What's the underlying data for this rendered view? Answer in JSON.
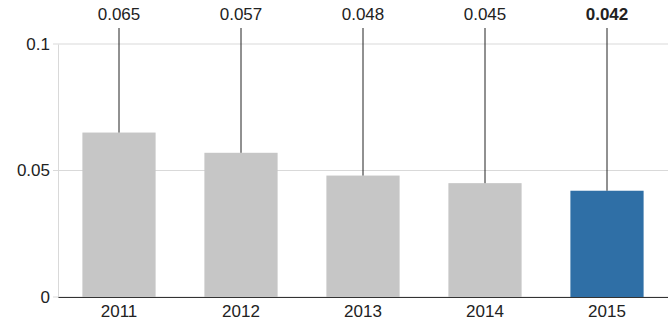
{
  "chart_data": {
    "type": "bar",
    "categories": [
      "2011",
      "2012",
      "2013",
      "2014",
      "2015"
    ],
    "values": [
      0.065,
      0.057,
      0.048,
      0.045,
      0.042
    ],
    "colors": [
      "#c6c6c6",
      "#c6c6c6",
      "#c6c6c6",
      "#c6c6c6",
      "#2f6fa6"
    ],
    "ylim": [
      0,
      0.1
    ],
    "yticks": [
      0,
      0.05,
      0.1
    ],
    "grid": true,
    "data_labels": true
  }
}
